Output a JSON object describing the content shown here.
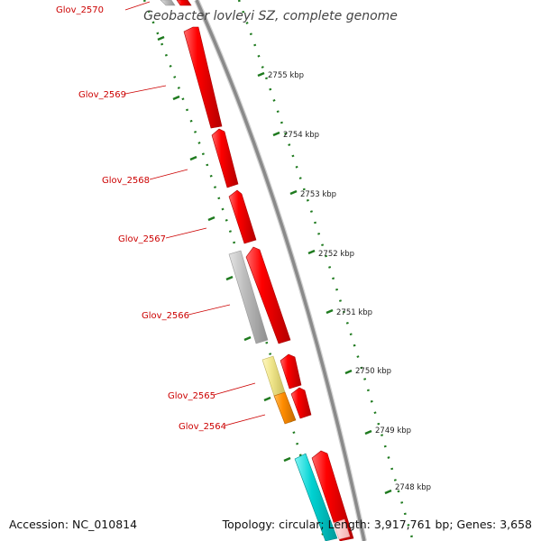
{
  "title": "Geobacter lovleyi SZ, complete genome",
  "footer": {
    "accession": "Accession: NC_010814",
    "summary": "Topology: circular; Length: 3,917,761 bp; Genes: 3,658"
  },
  "colors": {
    "backbone": "#8a8a8a",
    "tick_green": "#1e7a1e",
    "gene_red": "#ff0000",
    "gene_gray": "#b8b8b8",
    "gene_yellow": "#f0e68c",
    "gene_orange": "#ff8c00",
    "gene_cyan": "#00cccc",
    "label_red": "#cc0000"
  },
  "scale_labels": [
    "2755 kbp",
    "2754 kbp",
    "2753 kbp",
    "2752 kbp",
    "2751 kbp",
    "2750 kbp",
    "2749 kbp",
    "2748 kbp"
  ],
  "gene_labels": [
    "Glov_2570",
    "Glov_2569",
    "Glov_2568",
    "Glov_2567",
    "Glov_2566",
    "Glov_2565",
    "Glov_2564"
  ]
}
